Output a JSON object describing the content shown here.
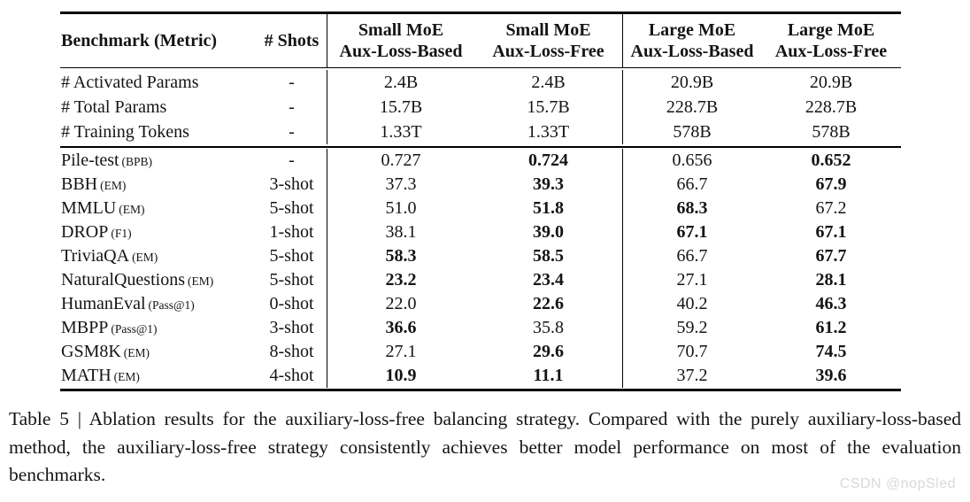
{
  "table": {
    "header": {
      "benchmark": "Benchmark (Metric)",
      "shots": "# Shots",
      "groups": [
        {
          "line1": "Small MoE",
          "line2": "Aux-Loss-Based"
        },
        {
          "line1": "Small MoE",
          "line2": "Aux-Loss-Free"
        },
        {
          "line1": "Large MoE",
          "line2": "Aux-Loss-Based"
        },
        {
          "line1": "Large MoE",
          "line2": "Aux-Loss-Free"
        }
      ]
    },
    "param_rows": [
      {
        "benchmark": "# Activated Params",
        "metric": "",
        "shots": "-",
        "values": [
          {
            "text": "2.4B",
            "bold": false
          },
          {
            "text": "2.4B",
            "bold": false
          },
          {
            "text": "20.9B",
            "bold": false
          },
          {
            "text": "20.9B",
            "bold": false
          }
        ]
      },
      {
        "benchmark": "# Total Params",
        "metric": "",
        "shots": "-",
        "values": [
          {
            "text": "15.7B",
            "bold": false
          },
          {
            "text": "15.7B",
            "bold": false
          },
          {
            "text": "228.7B",
            "bold": false
          },
          {
            "text": "228.7B",
            "bold": false
          }
        ]
      },
      {
        "benchmark": "# Training Tokens",
        "metric": "",
        "shots": "-",
        "values": [
          {
            "text": "1.33T",
            "bold": false
          },
          {
            "text": "1.33T",
            "bold": false
          },
          {
            "text": "578B",
            "bold": false
          },
          {
            "text": "578B",
            "bold": false
          }
        ]
      }
    ],
    "rows": [
      {
        "benchmark": "Pile-test",
        "metric": "(BPB)",
        "shots": "-",
        "values": [
          {
            "text": "0.727",
            "bold": false
          },
          {
            "text": "0.724",
            "bold": true
          },
          {
            "text": "0.656",
            "bold": false
          },
          {
            "text": "0.652",
            "bold": true
          }
        ]
      },
      {
        "benchmark": "BBH",
        "metric": "(EM)",
        "shots": "3-shot",
        "values": [
          {
            "text": "37.3",
            "bold": false
          },
          {
            "text": "39.3",
            "bold": true
          },
          {
            "text": "66.7",
            "bold": false
          },
          {
            "text": "67.9",
            "bold": true
          }
        ]
      },
      {
        "benchmark": "MMLU",
        "metric": "(EM)",
        "shots": "5-shot",
        "values": [
          {
            "text": "51.0",
            "bold": false
          },
          {
            "text": "51.8",
            "bold": true
          },
          {
            "text": "68.3",
            "bold": true
          },
          {
            "text": "67.2",
            "bold": false
          }
        ]
      },
      {
        "benchmark": "DROP",
        "metric": "(F1)",
        "shots": "1-shot",
        "values": [
          {
            "text": "38.1",
            "bold": false
          },
          {
            "text": "39.0",
            "bold": true
          },
          {
            "text": "67.1",
            "bold": true
          },
          {
            "text": "67.1",
            "bold": true
          }
        ]
      },
      {
        "benchmark": "TriviaQA",
        "metric": "(EM)",
        "shots": "5-shot",
        "values": [
          {
            "text": "58.3",
            "bold": true
          },
          {
            "text": "58.5",
            "bold": true
          },
          {
            "text": "66.7",
            "bold": false
          },
          {
            "text": "67.7",
            "bold": true
          }
        ]
      },
      {
        "benchmark": "NaturalQuestions",
        "metric": "(EM)",
        "shots": "5-shot",
        "values": [
          {
            "text": "23.2",
            "bold": true
          },
          {
            "text": "23.4",
            "bold": true
          },
          {
            "text": "27.1",
            "bold": false
          },
          {
            "text": "28.1",
            "bold": true
          }
        ]
      },
      {
        "benchmark": "HumanEval",
        "metric": "(Pass@1)",
        "shots": "0-shot",
        "values": [
          {
            "text": "22.0",
            "bold": false
          },
          {
            "text": "22.6",
            "bold": true
          },
          {
            "text": "40.2",
            "bold": false
          },
          {
            "text": "46.3",
            "bold": true
          }
        ]
      },
      {
        "benchmark": "MBPP",
        "metric": "(Pass@1)",
        "shots": "3-shot",
        "values": [
          {
            "text": "36.6",
            "bold": true
          },
          {
            "text": "35.8",
            "bold": false
          },
          {
            "text": "59.2",
            "bold": false
          },
          {
            "text": "61.2",
            "bold": true
          }
        ]
      },
      {
        "benchmark": "GSM8K",
        "metric": "(EM)",
        "shots": "8-shot",
        "values": [
          {
            "text": "27.1",
            "bold": false
          },
          {
            "text": "29.6",
            "bold": true
          },
          {
            "text": "70.7",
            "bold": false
          },
          {
            "text": "74.5",
            "bold": true
          }
        ]
      },
      {
        "benchmark": "MATH",
        "metric": "(EM)",
        "shots": "4-shot",
        "values": [
          {
            "text": "10.9",
            "bold": true
          },
          {
            "text": "11.1",
            "bold": true
          },
          {
            "text": "37.2",
            "bold": false
          },
          {
            "text": "39.6",
            "bold": true
          }
        ]
      }
    ]
  },
  "caption": {
    "text": "Table 5 | Ablation results for the auxiliary-loss-free balancing strategy. Compared with the purely auxiliary-loss-based method, the auxiliary-loss-free strategy consistently achieves better model performance on most of the evaluation benchmarks."
  },
  "watermark": {
    "text": "CSDN @nopSled",
    "color": "#d9d9d9"
  },
  "colors": {
    "text": "#141414",
    "rule": "#000000",
    "background": "#ffffff"
  }
}
